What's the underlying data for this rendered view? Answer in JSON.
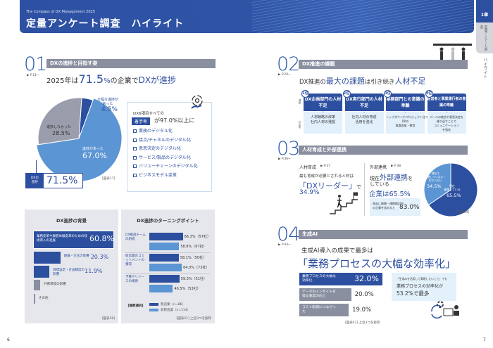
{
  "header": {
    "subtitle": "The Compass of DX Management 2025",
    "title": "定量アンケート調査　ハイライト"
  },
  "side_tab": {
    "chapter": "1章",
    "section": "定量アンケート調査",
    "current": "ハイライト"
  },
  "pages": {
    "left": "6",
    "right": "7"
  },
  "s01": {
    "num": "01",
    "bar": "DXの進捗と目指す姿",
    "ref": "▶ P.11~",
    "headline": {
      "pre": "2025年は",
      "value": "71.5",
      "pct": "%",
      "mid": "の企業で",
      "post": "DXが進捗"
    },
    "pie": {
      "slices": [
        {
          "label": "大幅な進捗があった",
          "value": 4.5,
          "color": "#2c4f9f"
        },
        {
          "label": "進捗があった",
          "value": 67.0,
          "color": "#5b95d3"
        },
        {
          "label": "進捗しなかった",
          "value": 28.5,
          "color": "#9a9dab"
        }
      ]
    },
    "labels": {
      "s1": "大幅な進捗が\nあった",
      "s1v": "4.5%",
      "s2": "進捗があった",
      "s2v": "67.0%",
      "s3": "進捗しなかった",
      "s3v": "28.5%"
    },
    "total_label": "DXの\n進捗",
    "total_value": "71.5%",
    "fig": "[図表17]",
    "box": {
      "lead": "DX6項目すべての",
      "tag": "着手率",
      "rate": "が97.0%以上に",
      "items": [
        "業務のデジタル化",
        "接点/チャネルのデジタル化",
        "意思決定のデジタル化",
        "サービス/製品のデジタル化",
        "バリューチェーンのデジタル化",
        "ビジネスモデル変革"
      ]
    },
    "background": {
      "title": "DX進捗の背景",
      "fig": "[図表18]",
      "items": [
        {
          "label": "業務変革や顧客体験変革のための技術導入の進展",
          "value": 60.8,
          "display": "60.8%"
        },
        {
          "label": "組織・文化の影響",
          "value": 20.3,
          "display": "20.3%"
        },
        {
          "label": "目標設定・計画精度の影響",
          "value": 11.9,
          "display": "11.9%"
        },
        {
          "label": "外部環境の影響",
          "value": 5,
          "display": ""
        },
        {
          "label": "その他",
          "value": 1,
          "display": ""
        }
      ]
    },
    "turning": {
      "title": "DX進捗のターニングポイント",
      "fig": "[図表21] 上位3つを抜粋",
      "multi": "【複数選択】",
      "legend": [
        {
          "name": "製造業（n=86）",
          "color": "#2c4f9f"
        },
        {
          "name": "非製造業（n=114）",
          "color": "#5b95d3"
        }
      ],
      "groups": [
        {
          "label": "DX推進チームの組成",
          "mfg": 66.3,
          "mfg_d": "66.3%（57社）",
          "non": 58.8,
          "non_d": "58.8%（67社）"
        },
        {
          "label": "経営層のコミットメントの獲得",
          "mfg": 58.1,
          "mfg_d": "58.1%（50社）",
          "non": 64.0,
          "non_d": "64.0%（73社）"
        },
        {
          "label": "予算やリソースの確保",
          "mfg": 59.3,
          "mfg_d": "59.3%（51社）",
          "non": 46.5,
          "non_d": "46.5%（53社）"
        }
      ]
    }
  },
  "s02": {
    "num": "02",
    "bar": "DX推進の課題",
    "ref": "▶ P.29~",
    "headline": {
      "a": "DX推進の",
      "b": "最大の課題",
      "c": "は引き続き",
      "d": "人材不足"
    },
    "row_labels": {
      "issue": "課題",
      "action": "対応策"
    },
    "cols": [
      {
        "rank": "1位",
        "issue": "DX企画部門の人材不足",
        "action": "人材戦略の改革\n社内人材の発掘"
      },
      {
        "rank": "2位",
        "issue": "DX実行部門の人材不足",
        "action": "社内人材の育成\n活用を強化"
      },
      {
        "rank": "3位",
        "issue": "業務部門との意識の乖離",
        "action": "トップダウンやプロジェクト化で\nDXの\n意識改革・教育"
      },
      {
        "rank": "4位",
        "issue": "経営者と事業運行者の意識の乖離",
        "action": "ゴールの統合や意思決定を\n繰り返すことで\nコミュニケーション\nを強化"
      }
    ]
  },
  "s03": {
    "num": "03",
    "bar": "人材育成と外部連携",
    "ref": "▶ P.36~",
    "hr": {
      "title": "人材育成",
      "ref": "▶ P.37",
      "lead": "最も育成が必要とされる人材は",
      "big": "「DXリーダー」",
      "post": "で",
      "value": "34.9%"
    },
    "ext": {
      "title": "外部連携",
      "ref": "▶ P.38",
      "l1a": "現在",
      "l1b": "外部連携",
      "l1c": "を",
      "l2": "している",
      "l3": "企業は65.5%",
      "box_text": "過去に連携・連携検討中\nの企業を含めると",
      "box_value": "83.0%",
      "pie": [
        {
          "label": "現在連携している",
          "value": 65.5,
          "color": "#2c4f9f"
        },
        {
          "label": "現在は連携していない・わからない",
          "value": 34.5,
          "color": "#5b95d3"
        }
      ],
      "l_now": "現在\n連携している",
      "l_now_v": "65.5%",
      "l_not": "現在は\n連携していない・\nわからない",
      "l_not_v": "34.5%",
      "fig": "[図表34]"
    }
  },
  "s04": {
    "num": "04",
    "bar": "生成AI",
    "ref": "▶ P.44~",
    "lead": "生成AI導入の成果で最多は",
    "big": "「業務プロセスの大幅な効率化」",
    "items": [
      {
        "label": "業務プロセスの大幅な効率化",
        "value": 32.0,
        "display": "32.0%"
      },
      {
        "label": "データのインサイトを得る速度の向上",
        "value": 20.0,
        "display": "20.0%"
      },
      {
        "label": "コスト削減につながった",
        "value": 19.0,
        "display": "19.0%"
      }
    ],
    "fig": "[図表41] 上位3つを抜粋",
    "note": {
      "small": "「生成AIを活用して実現したいこと」でも",
      "l1": "業務プロセスの効率化が",
      "l2": "53.2%で最多"
    }
  }
}
